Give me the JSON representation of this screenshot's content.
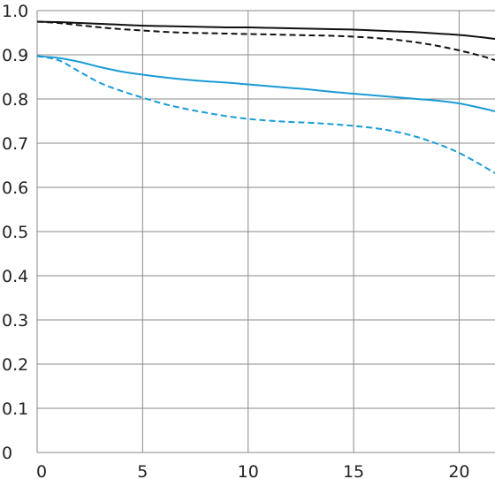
{
  "chart_data": {
    "type": "line",
    "title": "",
    "xlabel": "",
    "ylabel": "",
    "xlim": [
      0,
      21.7
    ],
    "ylim": [
      0,
      1.0
    ],
    "grid": true,
    "x_ticks": [
      0,
      5,
      10,
      15,
      20
    ],
    "x_tick_labels": [
      "0",
      "5",
      "10",
      "15",
      "20"
    ],
    "y_ticks": [
      0,
      0.1,
      0.2,
      0.3,
      0.4,
      0.5,
      0.6,
      0.7,
      0.8,
      0.9,
      1.0
    ],
    "y_tick_labels": [
      "0",
      "0.1",
      "0.2",
      "0.3",
      "0.4",
      "0.5",
      "0.6",
      "0.7",
      "0.8",
      "0.9",
      "1.0"
    ],
    "series": [
      {
        "color": "#111111",
        "dash": "solid",
        "x": [
          0,
          1,
          2,
          3,
          4,
          5,
          6,
          7,
          8,
          9,
          10,
          11,
          12,
          13,
          14,
          15,
          16,
          17,
          18,
          19,
          20,
          21,
          21.7
        ],
        "y": [
          0.975,
          0.974,
          0.972,
          0.97,
          0.968,
          0.966,
          0.965,
          0.964,
          0.963,
          0.962,
          0.962,
          0.961,
          0.96,
          0.959,
          0.958,
          0.957,
          0.955,
          0.953,
          0.951,
          0.948,
          0.945,
          0.94,
          0.936
        ]
      },
      {
        "color": "#111111",
        "dash": "dashed",
        "x": [
          0,
          1,
          2,
          3,
          4,
          5,
          6,
          7,
          8,
          9,
          10,
          11,
          12,
          13,
          14,
          15,
          16,
          17,
          18,
          19,
          20,
          21,
          21.7
        ],
        "y": [
          0.975,
          0.972,
          0.967,
          0.962,
          0.958,
          0.955,
          0.952,
          0.95,
          0.949,
          0.948,
          0.947,
          0.946,
          0.945,
          0.944,
          0.943,
          0.941,
          0.938,
          0.934,
          0.928,
          0.92,
          0.91,
          0.898,
          0.888
        ]
      },
      {
        "color": "#1a9bd7",
        "dash": "solid",
        "x": [
          0,
          1,
          2,
          3,
          4,
          5,
          6,
          7,
          8,
          9,
          10,
          11,
          12,
          13,
          14,
          15,
          16,
          17,
          18,
          19,
          20,
          21,
          21.7
        ],
        "y": [
          0.897,
          0.893,
          0.884,
          0.872,
          0.862,
          0.855,
          0.849,
          0.844,
          0.84,
          0.837,
          0.833,
          0.829,
          0.825,
          0.821,
          0.816,
          0.812,
          0.808,
          0.804,
          0.8,
          0.796,
          0.79,
          0.78,
          0.772
        ]
      },
      {
        "color": "#1a9bd7",
        "dash": "dashed",
        "x": [
          0,
          1,
          2,
          3,
          4,
          5,
          6,
          7,
          8,
          9,
          10,
          11,
          12,
          13,
          14,
          15,
          16,
          17,
          18,
          19,
          20,
          21,
          21.7
        ],
        "y": [
          0.897,
          0.888,
          0.862,
          0.836,
          0.818,
          0.803,
          0.789,
          0.778,
          0.769,
          0.761,
          0.755,
          0.751,
          0.748,
          0.746,
          0.743,
          0.739,
          0.734,
          0.726,
          0.714,
          0.698,
          0.678,
          0.652,
          0.632
        ]
      }
    ]
  }
}
